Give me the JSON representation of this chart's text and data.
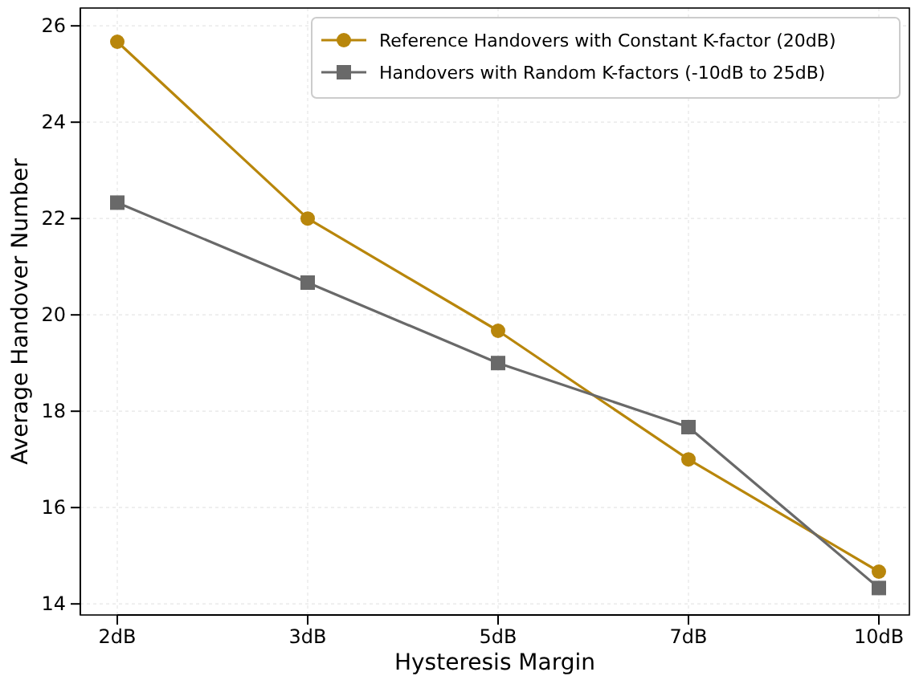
{
  "chart_data": {
    "type": "line",
    "xlabel": "Hysteresis Margin",
    "ylabel": "Average Handover Number",
    "categories": [
      "2dB",
      "3dB",
      "5dB",
      "7dB",
      "10dB"
    ],
    "series": [
      {
        "name": "Reference Handovers with Constant K-factor (20dB)",
        "color": "#b8860b",
        "marker": "circle",
        "values": [
          25.67,
          22.0,
          19.67,
          17.0,
          14.67
        ]
      },
      {
        "name": "Handovers with Random K-factors (-10dB to 25dB)",
        "color": "#696969",
        "marker": "square",
        "values": [
          22.33,
          20.67,
          19.0,
          17.67,
          14.33
        ]
      }
    ],
    "ylim": [
      13.77,
      26.37
    ],
    "yticks": [
      14,
      16,
      18,
      20,
      22,
      24,
      26
    ],
    "grid": true,
    "legend": "top right",
    "line_style": "solid"
  }
}
